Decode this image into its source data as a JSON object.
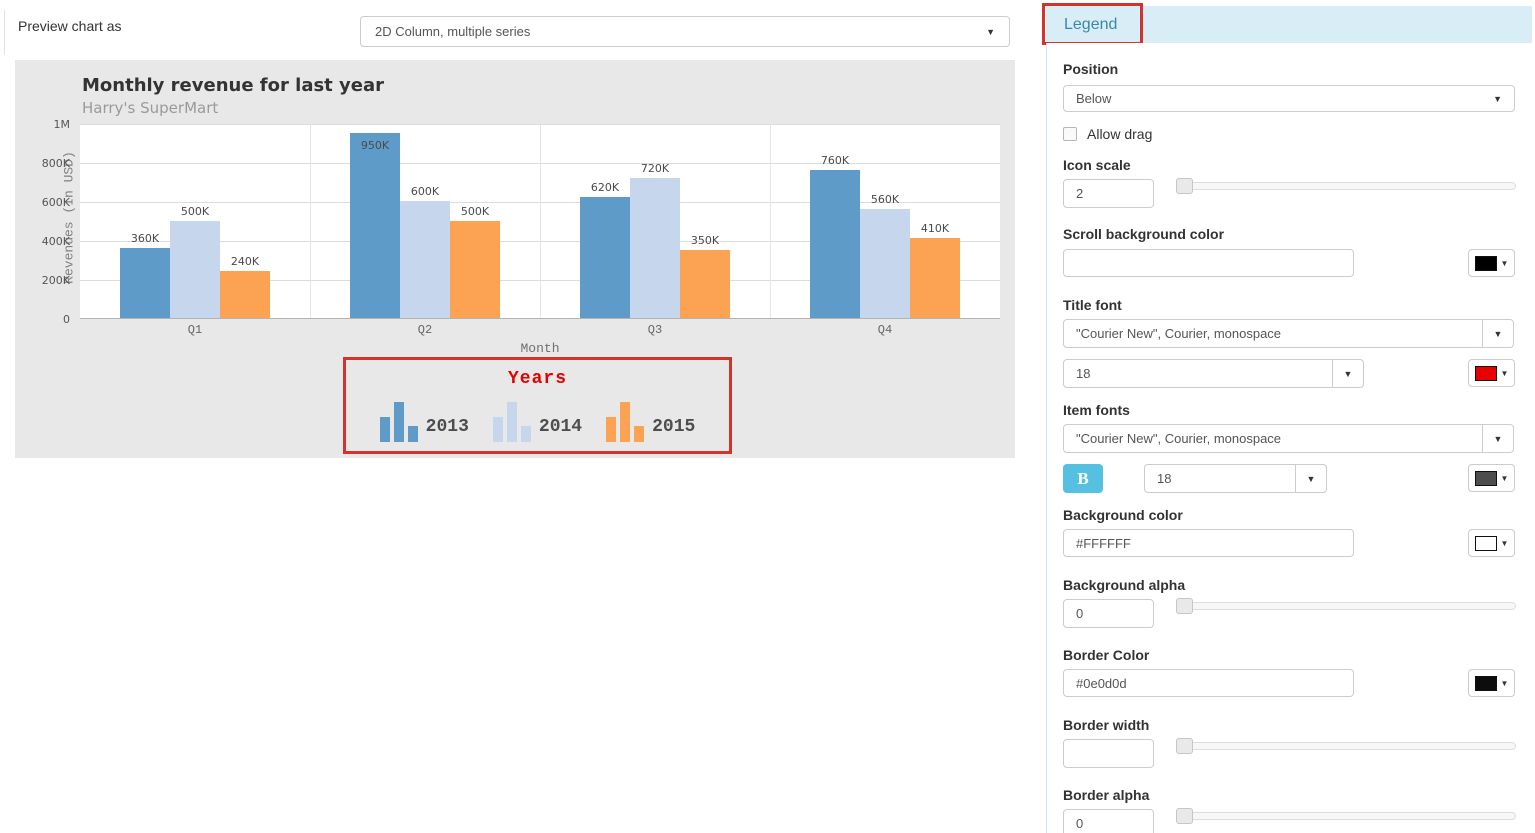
{
  "toolbar": {
    "preview_label": "Preview chart as",
    "chart_type": "2D Column, multiple series"
  },
  "chart_data": {
    "type": "bar",
    "title": "Monthly revenue for last year",
    "subtitle": "Harry's SuperMart",
    "xlabel": "Month",
    "ylabel": "Revenues (In USD)",
    "categories": [
      "Q1",
      "Q2",
      "Q3",
      "Q4"
    ],
    "series": [
      {
        "name": "2013",
        "color": "#5f9bc9",
        "values": [
          360000,
          950000,
          620000,
          760000
        ],
        "labels": [
          "360K",
          "950K",
          "620K",
          "760K"
        ]
      },
      {
        "name": "2014",
        "color": "#c6d6ed",
        "values": [
          500000,
          600000,
          720000,
          560000
        ],
        "labels": [
          "500K",
          "600K",
          "720K",
          "560K"
        ]
      },
      {
        "name": "2015",
        "color": "#fba353",
        "values": [
          240000,
          500000,
          350000,
          410000
        ],
        "labels": [
          "240K",
          "500K",
          "350K",
          "410K"
        ]
      }
    ],
    "ylim": [
      0,
      1000000
    ],
    "yticks": [
      {
        "v": 0,
        "label": "0"
      },
      {
        "v": 200000,
        "label": "200K"
      },
      {
        "v": 400000,
        "label": "400K"
      },
      {
        "v": 600000,
        "label": "600K"
      },
      {
        "v": 800000,
        "label": "800K"
      },
      {
        "v": 1000000,
        "label": "1M"
      }
    ],
    "grid": true,
    "legend": {
      "title": "Years",
      "position": "below"
    }
  },
  "panel": {
    "tab_label": "Legend",
    "position": {
      "label": "Position",
      "value": "Below"
    },
    "allow_drag": {
      "label": "Allow drag",
      "checked": false
    },
    "icon_scale": {
      "label": "Icon scale",
      "value": "2"
    },
    "scroll_background_color": {
      "label": "Scroll background color",
      "value": "",
      "swatch": "#000000"
    },
    "title_font": {
      "label": "Title font",
      "family": "\"Courier New\", Courier, monospace",
      "size": "18",
      "swatch": "#e60000"
    },
    "item_fonts": {
      "label": "Item fonts",
      "family": "\"Courier New\", Courier, monospace",
      "bold_button": "B",
      "size": "18",
      "swatch": "#4d4d4d"
    },
    "background_color": {
      "label": "Background color",
      "value": "#FFFFFF",
      "swatch": "#ffffff"
    },
    "background_alpha": {
      "label": "Background alpha",
      "value": "0"
    },
    "border_color": {
      "label": "Border Color",
      "value": "#0e0d0d",
      "swatch": "#0e0d0d"
    },
    "border_width": {
      "label": "Border width",
      "value": ""
    },
    "border_alpha": {
      "label": "Border alpha",
      "value": "0"
    }
  },
  "colors": {
    "annotation_red": "#d0342c",
    "legend_title_red": "#e60000",
    "tab_bar_bg": "#d9edf7",
    "tab_text": "#3a87ad",
    "chart_bg": "#e8e8e8",
    "bold_button_bg": "#56c0e0"
  },
  "glyphs": {
    "caret_down": "▼"
  }
}
